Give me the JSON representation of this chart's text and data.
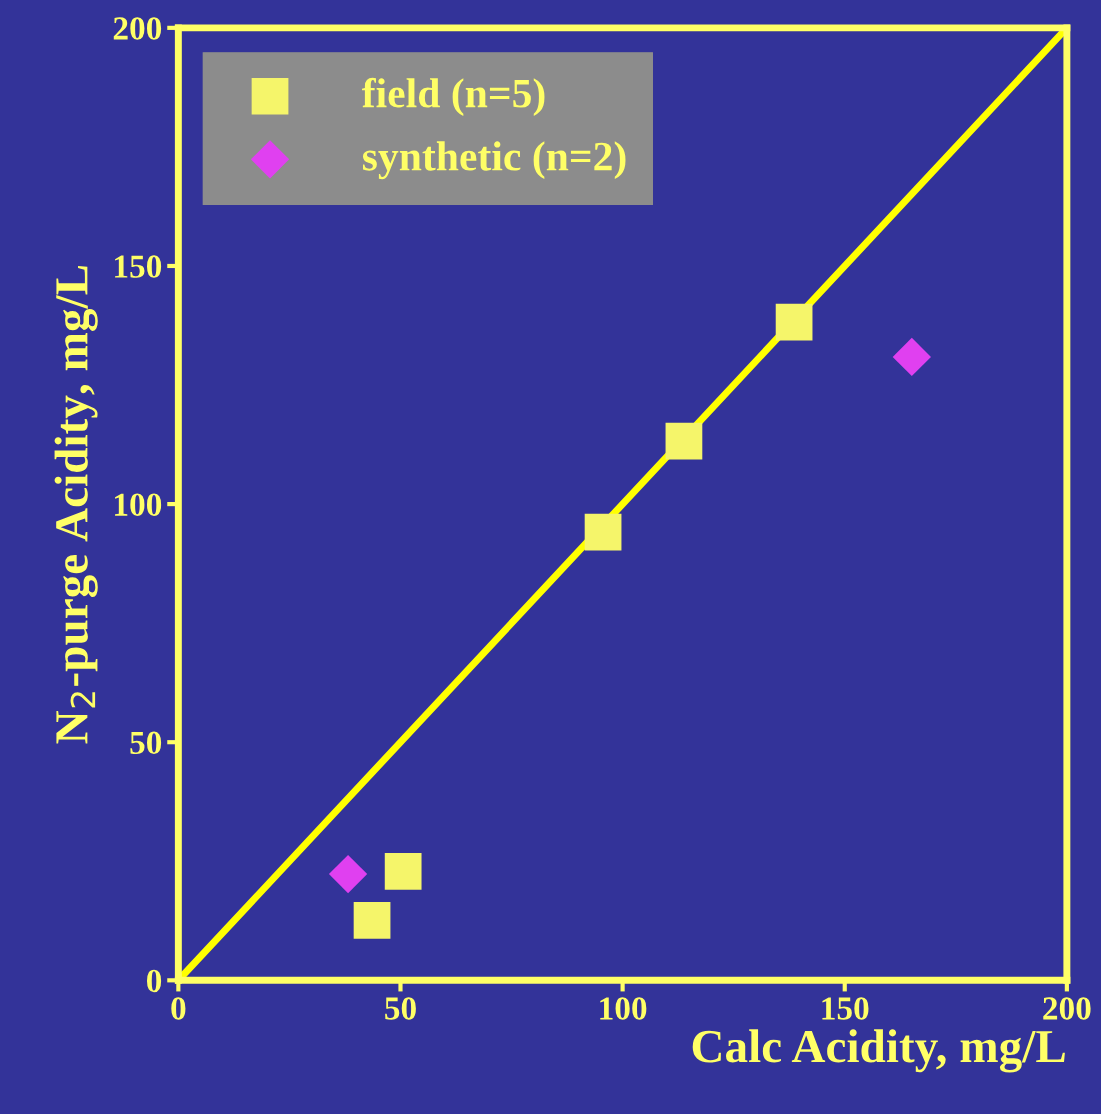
{
  "chart_data": {
    "type": "scatter",
    "xlabel": "Calc Acidity, mg/L",
    "ylabel": "N$_{2}$-purge Acidity, mg/L",
    "xlim": [
      0,
      200
    ],
    "ylim": [
      0,
      200
    ],
    "xticks": [
      0,
      50,
      100,
      150,
      200
    ],
    "yticks": [
      0,
      50,
      100,
      150,
      200
    ],
    "grid": false,
    "legend": "top left",
    "series": [
      {
        "name": "field (n=5)",
        "color": "#f5f56a",
        "marker": "square",
        "x": [
          43.6,
          50.6,
          95.6,
          113.8,
          138.6
        ],
        "values": [
          12.6,
          22.9,
          94.1,
          113.2,
          138.2
        ]
      },
      {
        "name": "synthetic (n=2)",
        "color": "#e040f0",
        "marker": "diamond",
        "x": [
          38.2,
          165.1
        ],
        "values": [
          22.3,
          130.9
        ]
      },
      {
        "type": "line",
        "color": "#ffff00",
        "marker": "none",
        "line_style": "solid",
        "x": [
          0,
          200
        ],
        "values": [
          0,
          200
        ]
      }
    ]
  }
}
